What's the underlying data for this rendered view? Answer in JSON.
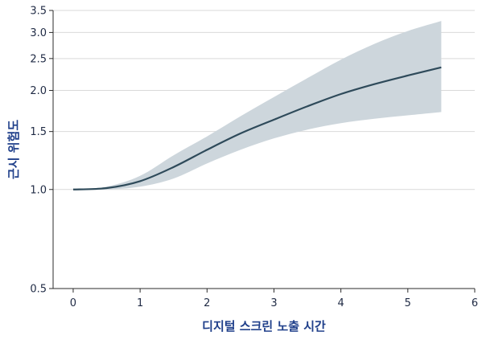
{
  "chart_data": {
    "type": "line",
    "title": "",
    "xlabel": "디지털 스크린 노출 시간",
    "ylabel": "근시 위험도",
    "y_scale": "log",
    "xlim": [
      -0.3,
      6.0
    ],
    "ylim": [
      0.5,
      3.5
    ],
    "x_ticks": [
      0,
      1,
      2,
      3,
      4,
      5,
      6
    ],
    "y_ticks": [
      0.5,
      1.0,
      1.5,
      2.0,
      2.5,
      3.0,
      3.5
    ],
    "grid": "horizontal",
    "series": [
      {
        "x": [
          0,
          0.5,
          1.0,
          1.5,
          2.0,
          2.5,
          3.0,
          3.5,
          4.0,
          4.5,
          5.0,
          5.5
        ],
        "y": [
          1.0,
          1.01,
          1.06,
          1.17,
          1.32,
          1.48,
          1.63,
          1.79,
          1.95,
          2.09,
          2.22,
          2.35
        ],
        "lower": [
          1.0,
          1.0,
          1.02,
          1.08,
          1.2,
          1.32,
          1.43,
          1.52,
          1.59,
          1.64,
          1.68,
          1.72
        ],
        "upper": [
          1.0,
          1.02,
          1.1,
          1.27,
          1.45,
          1.67,
          1.91,
          2.18,
          2.48,
          2.77,
          3.03,
          3.25
        ]
      }
    ],
    "colors": {
      "line": "#2e4a5a",
      "band": "#cdd6dc",
      "grid": "#d9d9d9",
      "axis": "#2b2b2b",
      "label": "#1f3f8a",
      "tick": "#1f2a44"
    }
  }
}
